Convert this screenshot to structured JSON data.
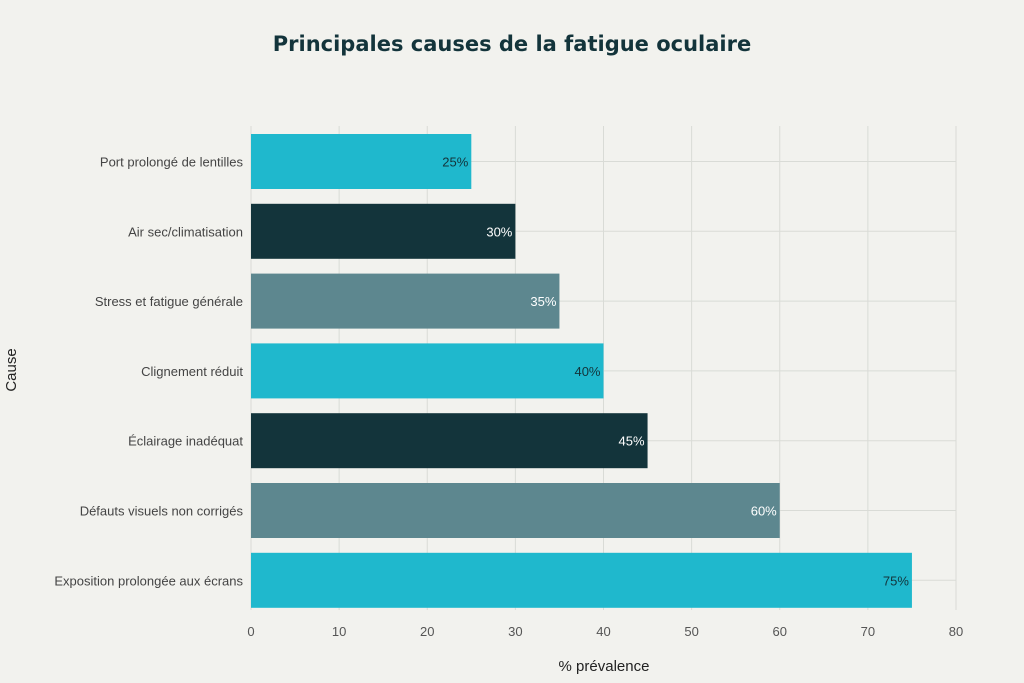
{
  "chart_data": {
    "type": "bar",
    "orientation": "horizontal",
    "title": "Principales causes de la fatigue oculaire",
    "xlabel": "% prévalence",
    "ylabel": "Cause",
    "xlim": [
      0,
      80
    ],
    "xticks": [
      0,
      10,
      20,
      30,
      40,
      50,
      60,
      70,
      80
    ],
    "grid": true,
    "categories": [
      "Port prolongé de lentilles",
      "Air sec/climatisation",
      "Stress et fatigue générale",
      "Clignement réduit",
      "Éclairage inadéquat",
      "Défauts visuels non corrigés",
      "Exposition prolongée aux écrans"
    ],
    "values": [
      25,
      30,
      35,
      40,
      45,
      60,
      75
    ],
    "data_labels": [
      "25%",
      "30%",
      "35%",
      "40%",
      "45%",
      "60%",
      "75%"
    ],
    "colors": [
      "#1fb8cd",
      "#13343b",
      "#5d878f",
      "#1fb8cd",
      "#13343b",
      "#5d878f",
      "#1fb8cd"
    ],
    "label_colors": [
      "#13343b",
      "#ffffff",
      "#ffffff",
      "#13343b",
      "#ffffff",
      "#ffffff",
      "#13343b"
    ]
  }
}
